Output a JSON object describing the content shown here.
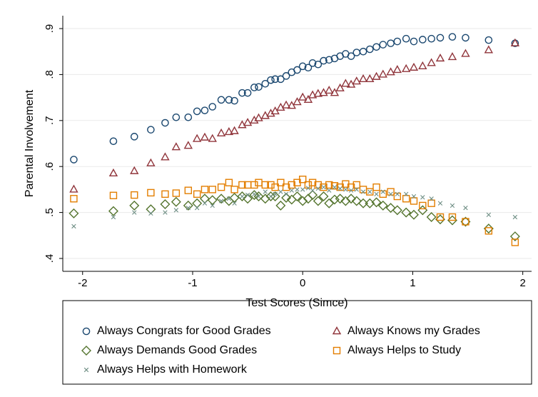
{
  "chart_data": {
    "type": "scatter",
    "x_label": "Test Scores (Simce)",
    "y_label": "Parental Involvement",
    "xlim": [
      -2.18,
      2.08
    ],
    "ylim": [
      0.372,
      0.928
    ],
    "xticks": [
      -2,
      -1,
      0,
      1,
      2
    ],
    "yticks": [
      {
        "value": 0.4,
        "label": ".4"
      },
      {
        "value": 0.5,
        "label": ".5"
      },
      {
        "value": 0.6,
        "label": ".6"
      },
      {
        "value": 0.7,
        "label": ".7"
      },
      {
        "value": 0.8,
        "label": ".8"
      },
      {
        "value": 0.9,
        "label": ".9"
      }
    ],
    "grid": true,
    "legend": "bottom",
    "x": [
      -2.08,
      -1.72,
      -1.53,
      -1.38,
      -1.25,
      -1.15,
      -1.04,
      -0.96,
      -0.89,
      -0.82,
      -0.74,
      -0.67,
      -0.62,
      -0.55,
      -0.5,
      -0.44,
      -0.4,
      -0.34,
      -0.29,
      -0.25,
      -0.2,
      -0.15,
      -0.1,
      -0.05,
      0,
      0.05,
      0.09,
      0.14,
      0.19,
      0.24,
      0.29,
      0.34,
      0.39,
      0.44,
      0.49,
      0.55,
      0.61,
      0.67,
      0.73,
      0.8,
      0.86,
      0.94,
      1.01,
      1.09,
      1.17,
      1.25,
      1.36,
      1.48,
      1.69,
      1.93
    ],
    "series": [
      {
        "name": "Always Congrats for Good Grades",
        "color": "#1a476f",
        "marker": "circle",
        "values": [
          0.615,
          0.655,
          0.665,
          0.68,
          0.695,
          0.707,
          0.707,
          0.72,
          0.722,
          0.73,
          0.745,
          0.745,
          0.743,
          0.76,
          0.76,
          0.772,
          0.773,
          0.78,
          0.788,
          0.79,
          0.79,
          0.797,
          0.805,
          0.81,
          0.818,
          0.815,
          0.825,
          0.822,
          0.83,
          0.832,
          0.835,
          0.84,
          0.845,
          0.84,
          0.848,
          0.85,
          0.855,
          0.86,
          0.865,
          0.868,
          0.872,
          0.878,
          0.872,
          0.876,
          0.878,
          0.88,
          0.882,
          0.88,
          0.875,
          0.868
        ]
      },
      {
        "name": "Always Knows my Grades",
        "color": "#90353b",
        "marker": "triangle",
        "values": [
          0.55,
          0.585,
          0.59,
          0.607,
          0.62,
          0.642,
          0.645,
          0.66,
          0.663,
          0.66,
          0.672,
          0.675,
          0.677,
          0.69,
          0.695,
          0.7,
          0.705,
          0.71,
          0.715,
          0.72,
          0.728,
          0.733,
          0.732,
          0.74,
          0.75,
          0.745,
          0.755,
          0.758,
          0.76,
          0.765,
          0.76,
          0.77,
          0.78,
          0.778,
          0.785,
          0.79,
          0.79,
          0.795,
          0.8,
          0.805,
          0.81,
          0.812,
          0.815,
          0.818,
          0.825,
          0.835,
          0.838,
          0.845,
          0.853,
          0.868
        ]
      },
      {
        "name": "Always Demands Good Grades",
        "color": "#55752f",
        "marker": "diamond",
        "values": [
          0.498,
          0.503,
          0.515,
          0.507,
          0.518,
          0.523,
          0.515,
          0.52,
          0.53,
          0.527,
          0.53,
          0.525,
          0.532,
          0.535,
          0.53,
          0.538,
          0.535,
          0.53,
          0.535,
          0.535,
          0.515,
          0.532,
          0.528,
          0.535,
          0.525,
          0.53,
          0.538,
          0.525,
          0.535,
          0.52,
          0.528,
          0.53,
          0.525,
          0.53,
          0.525,
          0.52,
          0.52,
          0.522,
          0.515,
          0.51,
          0.505,
          0.5,
          0.495,
          0.505,
          0.49,
          0.485,
          0.483,
          0.48,
          0.465,
          0.448
        ]
      },
      {
        "name": "Always Helps to Study",
        "color": "#e37e00",
        "marker": "square",
        "values": [
          0.53,
          0.537,
          0.538,
          0.543,
          0.54,
          0.542,
          0.548,
          0.54,
          0.55,
          0.55,
          0.555,
          0.565,
          0.55,
          0.56,
          0.56,
          0.56,
          0.565,
          0.56,
          0.56,
          0.555,
          0.565,
          0.555,
          0.56,
          0.565,
          0.572,
          0.56,
          0.565,
          0.56,
          0.555,
          0.56,
          0.558,
          0.555,
          0.562,
          0.555,
          0.56,
          0.55,
          0.545,
          0.555,
          0.54,
          0.545,
          0.535,
          0.53,
          0.525,
          0.515,
          0.52,
          0.49,
          0.49,
          0.48,
          0.46,
          0.435
        ]
      },
      {
        "name": "Always Helps with Homework",
        "color": "#6e8e84",
        "marker": "x",
        "values": [
          0.47,
          0.49,
          0.5,
          0.498,
          0.5,
          0.505,
          0.51,
          0.51,
          0.52,
          0.515,
          0.525,
          0.53,
          0.52,
          0.535,
          0.538,
          0.54,
          0.535,
          0.545,
          0.535,
          0.54,
          0.545,
          0.54,
          0.548,
          0.55,
          0.55,
          0.553,
          0.548,
          0.552,
          0.555,
          0.548,
          0.555,
          0.552,
          0.55,
          0.548,
          0.55,
          0.545,
          0.545,
          0.54,
          0.545,
          0.54,
          0.54,
          0.54,
          0.535,
          0.533,
          0.53,
          0.52,
          0.515,
          0.51,
          0.495,
          0.49
        ]
      }
    ]
  }
}
